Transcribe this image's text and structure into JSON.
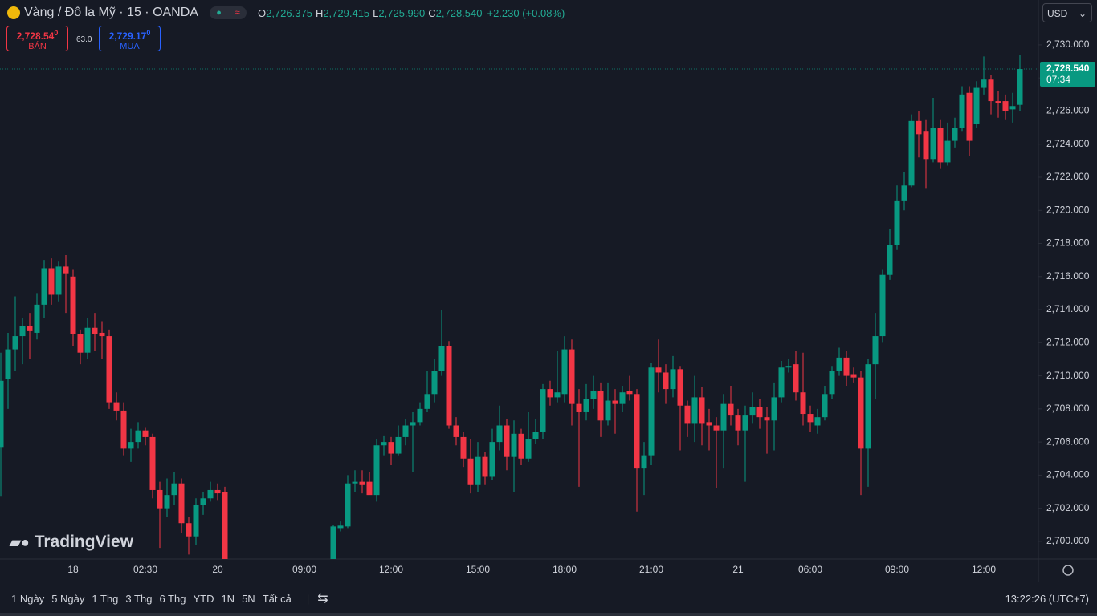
{
  "header": {
    "symbol": "Vàng / Đô la Mỹ · 15 · OANDA",
    "ohlc": [
      {
        "key": "O",
        "value": "2,726.375"
      },
      {
        "key": "H",
        "value": "2,729.415"
      },
      {
        "key": "L",
        "value": "2,725.990"
      },
      {
        "key": "C",
        "value": "2,728.540"
      }
    ],
    "change": "+2.230 (+0.08%)"
  },
  "trade": {
    "sell_price": "2,728.54",
    "sell_digit": "0",
    "sell_label": "BÁN",
    "spread": "63.0",
    "buy_price": "2,729.17",
    "buy_digit": "0",
    "buy_label": "MUA"
  },
  "currency": "USD",
  "logo": "TradingView",
  "toolbar": {
    "ranges": [
      "1 Ngày",
      "5 Ngày",
      "1 Thg",
      "3 Thg",
      "6 Thg",
      "YTD",
      "1N",
      "5N",
      "Tất cả"
    ],
    "clock": "13:22:26 (UTC+7)"
  },
  "chart_data": {
    "type": "candlestick",
    "categories": [
      null,
      null,
      null,
      null,
      null,
      null,
      null,
      null,
      null,
      null,
      "18",
      null,
      null,
      null,
      null,
      null,
      null,
      null,
      null,
      null,
      "02:30",
      null,
      null,
      null,
      null,
      null,
      null,
      null,
      null,
      null,
      "20",
      null,
      null,
      null,
      null,
      null,
      null,
      null,
      null,
      null,
      null,
      null,
      "09:00",
      null,
      null,
      null,
      null,
      null,
      null,
      null,
      null,
      null,
      null,
      null,
      "12:00",
      null,
      null,
      null,
      null,
      null,
      null,
      null,
      null,
      null,
      null,
      null,
      "15:00",
      null,
      null,
      null,
      null,
      null,
      null,
      null,
      null,
      null,
      null,
      null,
      "18:00",
      null,
      null,
      null,
      null,
      null,
      null,
      null,
      null,
      null,
      null,
      null,
      "21:00",
      null,
      null,
      null,
      null,
      null,
      null,
      null,
      null,
      null,
      null,
      null,
      "21",
      null,
      null,
      null,
      null,
      null,
      null,
      null,
      null,
      null,
      "06:00",
      null,
      null,
      null,
      null,
      null,
      null,
      null,
      null,
      null,
      null,
      null,
      "09:00",
      null,
      null,
      null,
      null,
      null,
      null,
      null,
      null,
      null,
      null,
      null,
      "12:00",
      null,
      null,
      null,
      null,
      null
    ],
    "open": [
      2705.7,
      2709.8,
      2711.6,
      2712.4,
      2713.0,
      2712.6,
      2714.3,
      2716.5,
      2714.9,
      2716.6,
      2716.0,
      2712.5,
      2711.4,
      2712.9,
      2712.6,
      2712.4,
      2708.4,
      2707.9,
      2705.6,
      2706.0,
      2706.7,
      2706.3,
      2703.1,
      2702.0,
      2702.8,
      2703.5,
      2701.1,
      2700.3,
      2702.2,
      2702.6,
      2703.1,
      2703.0,
      null,
      null,
      null,
      null,
      null,
      null,
      null,
      null,
      null,
      null,
      null,
      null,
      null,
      null,
      2698.8,
      2700.8,
      2700.9,
      2703.5,
      2703.6,
      2703.6,
      2702.8,
      2705.8,
      2706.0,
      2705.3,
      2706.3,
      2707.0,
      2707.2,
      2708.0,
      2708.9,
      2710.3,
      2711.8,
      2707.0,
      2706.3,
      2705.0,
      2703.4,
      2705.1,
      2703.9,
      2706.0,
      2707.0,
      2705.1,
      2706.5,
      2705.0,
      2706.2,
      2706.6,
      2709.2,
      2708.7,
      2708.9,
      2711.6,
      2708.3,
      2707.8,
      2708.6,
      2709.1,
      2707.3,
      2708.5,
      2708.3,
      2709.1,
      2708.9,
      2704.4,
      2705.2,
      2710.5,
      2710.2,
      2709.2,
      2710.4,
      2708.2,
      2707.1,
      2708.7,
      2707.2,
      2707.0,
      2706.7,
      2708.3,
      2707.6,
      2706.7,
      2707.6,
      2708.1,
      2707.5,
      2707.3,
      2708.7,
      2710.5,
      2710.7,
      2709.0,
      2707.7,
      2707.0,
      2707.5,
      2708.9,
      2710.3,
      2711.1,
      2710.1,
      2709.9,
      2705.6,
      2710.7,
      2712.4,
      2716.1,
      2717.9,
      2720.6,
      2721.5,
      2725.4,
      2724.8,
      2723.1,
      2725.0,
      2722.9,
      2724.2,
      2725.0,
      2727.1,
      2725.2,
      2727.4,
      2727.9,
      2726.6,
      2726.6,
      2726.1,
      2726.375
    ],
    "high": [
      2711.4,
      2712.6,
      2714.8,
      2713.5,
      2713.8,
      2715.0,
      2717.0,
      2717.1,
      2716.9,
      2717.3,
      2716.4,
      2712.8,
      2713.5,
      2713.8,
      2713.3,
      2712.8,
      2709.0,
      2708.4,
      2706.8,
      2707.2,
      2706.9,
      2706.5,
      2703.6,
      2703.8,
      2704.2,
      2703.8,
      2701.5,
      2702.6,
      2703.0,
      2703.6,
      2703.5,
      2703.3,
      null,
      null,
      null,
      null,
      null,
      null,
      null,
      null,
      null,
      null,
      null,
      null,
      null,
      null,
      2701.0,
      2701.2,
      2704.0,
      2704.3,
      2704.3,
      2704.2,
      2706.2,
      2706.4,
      2706.3,
      2707.0,
      2707.4,
      2707.8,
      2708.4,
      2710.3,
      2711.0,
      2714.0,
      2712.1,
      2707.5,
      2706.6,
      2706.2,
      2706.0,
      2705.4,
      2706.8,
      2708.2,
      2707.4,
      2707.3,
      2706.8,
      2707.8,
      2707.4,
      2709.5,
      2709.7,
      2711.5,
      2712.4,
      2712.2,
      2709.2,
      2709.5,
      2710.0,
      2709.6,
      2709.6,
      2709.2,
      2709.4,
      2710.0,
      2709.2,
      2706.0,
      2710.8,
      2712.2,
      2710.7,
      2711.2,
      2710.6,
      2708.5,
      2710.0,
      2709.3,
      2708.0,
      2707.5,
      2708.9,
      2709.4,
      2708.0,
      2708.2,
      2709.0,
      2708.6,
      2708.1,
      2709.6,
      2710.9,
      2711.0,
      2711.5,
      2711.4,
      2708.2,
      2708.0,
      2709.4,
      2710.6,
      2711.7,
      2711.5,
      2710.5,
      2710.3,
      2711.0,
      2713.8,
      2716.4,
      2718.9,
      2721.5,
      2722.3,
      2725.8,
      2726.0,
      2725.5,
      2726.8,
      2725.5,
      2725.3,
      2725.6,
      2727.5,
      2727.5,
      2727.8,
      2729.3,
      2728.2,
      2727.2,
      2727.0,
      2727.1,
      2729.415
    ],
    "low": [
      2702.7,
      2708.0,
      2710.3,
      2710.7,
      2711.0,
      2712.2,
      2713.5,
      2714.3,
      2714.5,
      2713.8,
      2711.8,
      2710.7,
      2711.0,
      2711.5,
      2711.0,
      2708.0,
      2707.3,
      2705.2,
      2704.8,
      2705.6,
      2705.8,
      2702.6,
      2699.6,
      2701.5,
      2702.2,
      2700.5,
      2699.2,
      2699.8,
      2701.6,
      2702.4,
      2702.5,
      2698.5,
      null,
      null,
      null,
      null,
      null,
      null,
      null,
      null,
      null,
      null,
      null,
      null,
      null,
      null,
      2698.5,
      2700.6,
      2700.8,
      2703.0,
      2702.9,
      2702.9,
      2702.4,
      2705.2,
      2704.6,
      2705.2,
      2705.8,
      2704.2,
      2707.0,
      2707.8,
      2708.4,
      2710.0,
      2706.8,
      2705.8,
      2704.5,
      2702.9,
      2703.0,
      2703.4,
      2703.7,
      2705.5,
      2704.3,
      2703.0,
      2704.6,
      2704.8,
      2705.9,
      2706.2,
      2708.2,
      2708.4,
      2708.4,
      2707.0,
      2703.3,
      2707.3,
      2708.0,
      2706.3,
      2707.0,
      2706.5,
      2707.8,
      2708.5,
      2701.8,
      2702.8,
      2704.6,
      2709.0,
      2708.3,
      2708.7,
      2705.5,
      2706.3,
      2706.0,
      2705.8,
      2705.5,
      2703.2,
      2704.4,
      2707.0,
      2705.8,
      2703.6,
      2707.1,
      2706.8,
      2705.3,
      2705.5,
      2708.4,
      2710.2,
      2708.5,
      2707.0,
      2706.6,
      2706.5,
      2707.3,
      2708.6,
      2710.0,
      2709.4,
      2709.6,
      2702.8,
      2703.3,
      2708.6,
      2712.0,
      2715.8,
      2717.6,
      2720.0,
      2721.4,
      2723.2,
      2721.3,
      2722.9,
      2722.5,
      2722.7,
      2723.8,
      2724.8,
      2723.3,
      2725.0,
      2727.0,
      2725.8,
      2725.6,
      2725.5,
      2725.3,
      2725.99
    ],
    "close": [
      2709.7,
      2711.6,
      2712.4,
      2713.0,
      2712.7,
      2714.3,
      2716.5,
      2714.9,
      2716.6,
      2716.2,
      2712.5,
      2711.4,
      2712.9,
      2712.5,
      2712.4,
      2708.4,
      2707.9,
      2705.6,
      2706.0,
      2706.7,
      2706.3,
      2703.1,
      2702.0,
      2702.8,
      2703.5,
      2701.1,
      2700.3,
      2702.2,
      2702.6,
      2703.1,
      2702.9,
      2698.8,
      null,
      null,
      null,
      null,
      null,
      null,
      null,
      null,
      null,
      null,
      null,
      null,
      null,
      null,
      2700.9,
      2700.95,
      2703.5,
      2703.6,
      2703.4,
      2702.8,
      2705.8,
      2706.0,
      2705.3,
      2706.3,
      2707.0,
      2707.2,
      2708.0,
      2708.9,
      2710.3,
      2711.8,
      2707.0,
      2706.3,
      2705.0,
      2703.4,
      2705.1,
      2703.9,
      2706.0,
      2707.0,
      2705.1,
      2706.5,
      2705.0,
      2706.2,
      2706.6,
      2709.2,
      2708.7,
      2709.0,
      2711.6,
      2708.3,
      2707.8,
      2708.6,
      2709.1,
      2707.3,
      2708.5,
      2708.3,
      2709.0,
      2708.9,
      2704.4,
      2705.2,
      2710.5,
      2710.2,
      2709.2,
      2710.4,
      2708.2,
      2707.1,
      2708.7,
      2707.1,
      2707.0,
      2706.7,
      2708.3,
      2707.6,
      2706.7,
      2707.6,
      2708.1,
      2707.5,
      2707.3,
      2708.7,
      2710.5,
      2710.6,
      2709.0,
      2707.7,
      2707.2,
      2707.5,
      2708.9,
      2710.3,
      2711.1,
      2710.0,
      2709.9,
      2705.6,
      2710.7,
      2712.4,
      2716.1,
      2717.9,
      2720.6,
      2721.5,
      2725.4,
      2724.6,
      2723.1,
      2725.0,
      2722.9,
      2724.2,
      2725.0,
      2727.0,
      2724.2,
      2727.4,
      2727.9,
      2726.6,
      2726.5,
      2726.0,
      2726.3,
      2728.54
    ],
    "up_color": "#089981",
    "down_color": "#f23645",
    "ylim": [
      2698.93,
      2732.71
    ],
    "yticks": [
      {
        "value": 2700,
        "label": "2,700.000"
      },
      {
        "value": 2702,
        "label": "2,702.000"
      },
      {
        "value": 2704,
        "label": "2,704.000"
      },
      {
        "value": 2706,
        "label": "2,706.000"
      },
      {
        "value": 2708,
        "label": "2,708.000"
      },
      {
        "value": 2710,
        "label": "2,710.000"
      },
      {
        "value": 2712,
        "label": "2,712.000"
      },
      {
        "value": 2714,
        "label": "2,714.000"
      },
      {
        "value": 2716,
        "label": "2,716.000"
      },
      {
        "value": 2718,
        "label": "2,718.000"
      },
      {
        "value": 2720,
        "label": "2,720.000"
      },
      {
        "value": 2722,
        "label": "2,722.000"
      },
      {
        "value": 2724,
        "label": "2,724.000"
      },
      {
        "value": 2726,
        "label": "2,726.000"
      },
      {
        "value": 2728,
        "label": "2,728.000"
      },
      {
        "value": 2730,
        "label": "2,730.000"
      }
    ],
    "grid": true,
    "price_line": {
      "value": 2728.54,
      "label": "2,728.540",
      "countdown": "07:34"
    }
  }
}
